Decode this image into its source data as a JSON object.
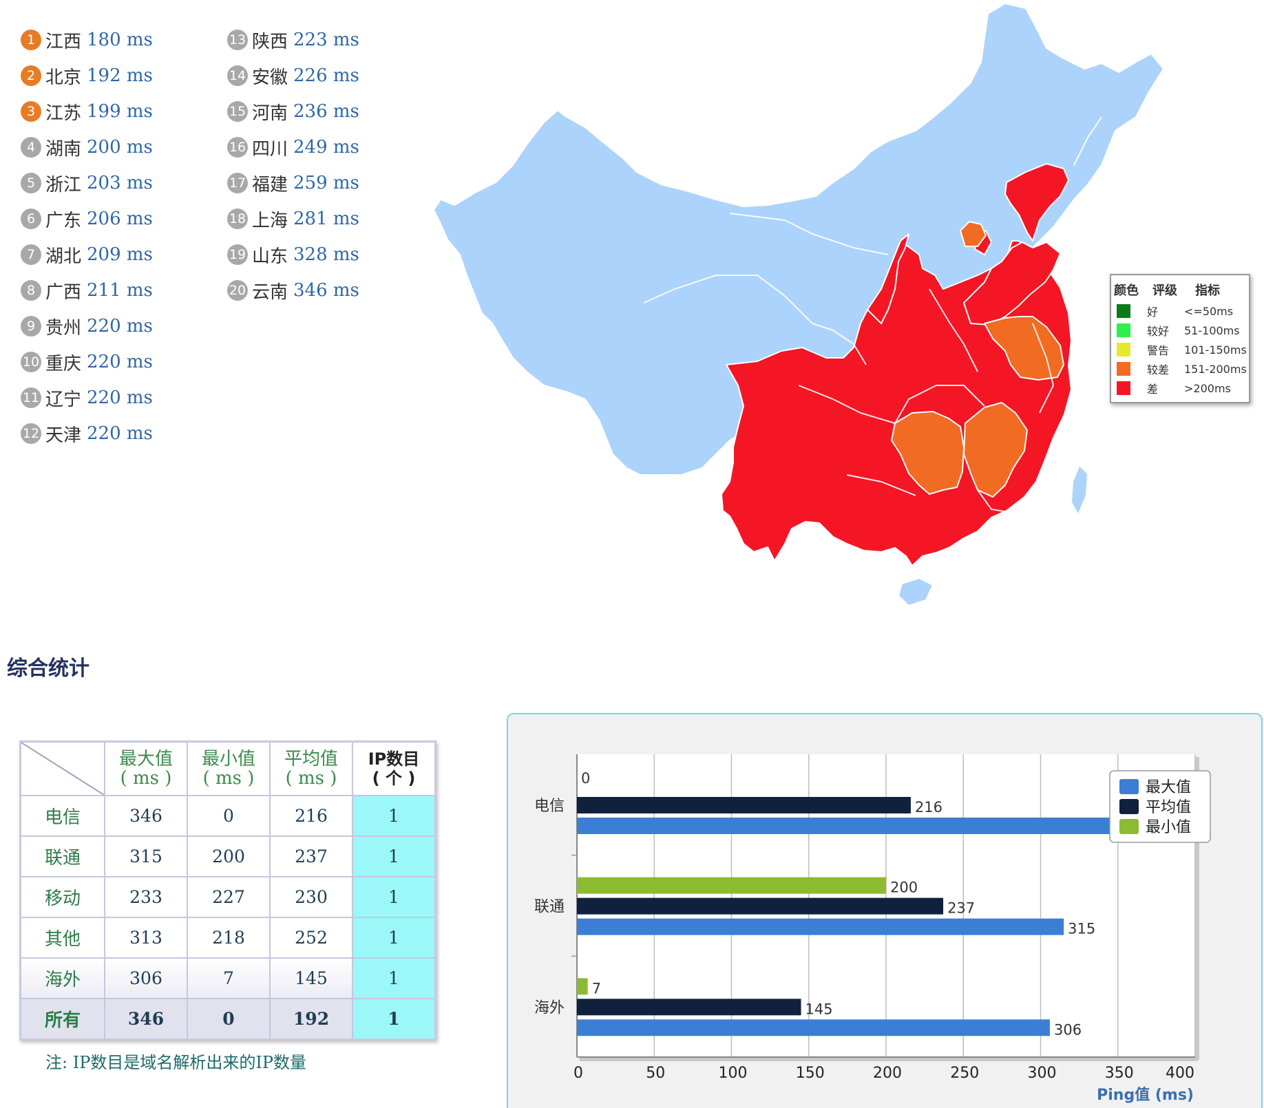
{
  "ranking": [
    {
      "rank": "1",
      "province": "江西",
      "ms": "180 ms"
    },
    {
      "rank": "2",
      "province": "北京",
      "ms": "192 ms"
    },
    {
      "rank": "3",
      "province": "江苏",
      "ms": "199 ms"
    },
    {
      "rank": "4",
      "province": "湖南",
      "ms": "200 ms"
    },
    {
      "rank": "5",
      "province": "浙江",
      "ms": "203 ms"
    },
    {
      "rank": "6",
      "province": "广东",
      "ms": "206 ms"
    },
    {
      "rank": "7",
      "province": "湖北",
      "ms": "209 ms"
    },
    {
      "rank": "8",
      "province": "广西",
      "ms": "211 ms"
    },
    {
      "rank": "9",
      "province": "贵州",
      "ms": "220 ms"
    },
    {
      "rank": "10",
      "province": "重庆",
      "ms": "220 ms"
    },
    {
      "rank": "11",
      "province": "辽宁",
      "ms": "220 ms"
    },
    {
      "rank": "12",
      "province": "天津",
      "ms": "220 ms"
    },
    {
      "rank": "13",
      "province": "陕西",
      "ms": "223 ms"
    },
    {
      "rank": "14",
      "province": "安徽",
      "ms": "226 ms"
    },
    {
      "rank": "15",
      "province": "河南",
      "ms": "236 ms"
    },
    {
      "rank": "16",
      "province": "四川",
      "ms": "249 ms"
    },
    {
      "rank": "17",
      "province": "福建",
      "ms": "259 ms"
    },
    {
      "rank": "18",
      "province": "上海",
      "ms": "281 ms"
    },
    {
      "rank": "19",
      "province": "山东",
      "ms": "328 ms"
    },
    {
      "rank": "20",
      "province": "云南",
      "ms": "346 ms"
    }
  ],
  "map_legend": {
    "headers": [
      "颜色",
      "评级",
      "指标"
    ],
    "rows": [
      {
        "color": "#0b7a1b",
        "grade": "好",
        "range": "<=50ms"
      },
      {
        "color": "#2ef04a",
        "grade": "较好",
        "range": "51-100ms"
      },
      {
        "color": "#e8e82e",
        "grade": "警告",
        "range": "101-150ms"
      },
      {
        "color": "#f26b22",
        "grade": "较差",
        "range": "151-200ms"
      },
      {
        "color": "#f41624",
        "grade": "差",
        "range": ">200ms"
      }
    ]
  },
  "map_colors": {
    "no_data": "#acd3fb",
    "bad": "#f41624",
    "poor": "#f26b22"
  },
  "section_title": "综合统计",
  "stats_table": {
    "headers": [
      {
        "line1": "最大值",
        "line2": "( ms )"
      },
      {
        "line1": "最小值",
        "line2": "( ms )"
      },
      {
        "line1": "平均值",
        "line2": "( ms )"
      },
      {
        "line1": "IP数目",
        "line2": "( 个 )"
      }
    ],
    "rows": [
      {
        "label": "电信",
        "max": "346",
        "min": "0",
        "avg": "216",
        "ip": "1"
      },
      {
        "label": "联通",
        "max": "315",
        "min": "200",
        "avg": "237",
        "ip": "1"
      },
      {
        "label": "移动",
        "max": "233",
        "min": "227",
        "avg": "230",
        "ip": "1"
      },
      {
        "label": "其他",
        "max": "313",
        "min": "218",
        "avg": "252",
        "ip": "1"
      },
      {
        "label": "海外",
        "max": "306",
        "min": "7",
        "avg": "145",
        "ip": "1"
      },
      {
        "label": "所有",
        "max": "346",
        "min": "0",
        "avg": "192",
        "ip": "1"
      }
    ],
    "note": "注: IP数目是域名解析出来的IP数量"
  },
  "chart_data": {
    "type": "bar",
    "orientation": "horizontal",
    "categories": [
      "电信",
      "联通",
      "海外"
    ],
    "series": [
      {
        "name": "最小值",
        "color": "#8cbb31",
        "values": [
          0,
          200,
          7
        ]
      },
      {
        "name": "平均值",
        "color": "#10213d",
        "values": [
          216,
          237,
          145
        ]
      },
      {
        "name": "最大值",
        "color": "#3a7fd5",
        "values": [
          346,
          315,
          306
        ]
      }
    ],
    "legend_order": [
      "最大值",
      "平均值",
      "最小值"
    ],
    "legend_position": "top-right",
    "xlabel": "Ping值 (ms)",
    "xlim": [
      0,
      400
    ],
    "xticks": [
      0,
      50,
      100,
      150,
      200,
      250,
      300,
      350,
      400
    ],
    "grid": true
  }
}
